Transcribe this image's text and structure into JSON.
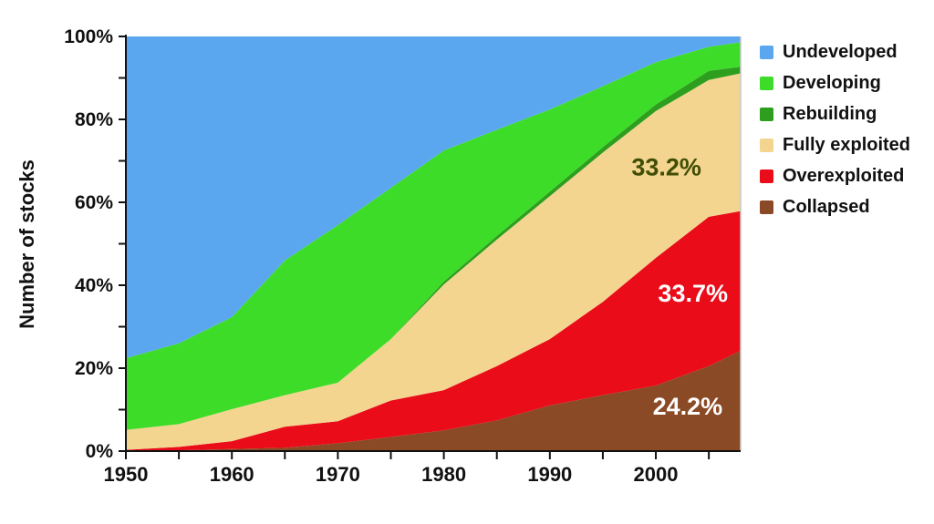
{
  "y_axis_title": "Number of stocks",
  "chart_data": {
    "type": "area",
    "stacked": true,
    "title": "",
    "xlabel": "",
    "ylabel": "Number of stocks",
    "xlim": [
      1950,
      2008
    ],
    "ylim": [
      0,
      100
    ],
    "grid": false,
    "legend_position": "right-top",
    "x": [
      1950,
      1955,
      1960,
      1965,
      1970,
      1975,
      1980,
      1985,
      1990,
      1995,
      2000,
      2005,
      2008
    ],
    "series": [
      {
        "name": "Collapsed",
        "color": "#8a4a26",
        "values": [
          0.0,
          0.2,
          0.5,
          0.8,
          1.9,
          3.4,
          5.0,
          7.4,
          11.0,
          13.5,
          15.8,
          20.5,
          24.2
        ]
      },
      {
        "name": "Overexploited",
        "color": "#ea0c19",
        "values": [
          0.3,
          0.8,
          1.9,
          5.1,
          5.3,
          8.8,
          9.7,
          13.1,
          16.0,
          22.5,
          30.8,
          36.0,
          33.7
        ]
      },
      {
        "name": "Fully exploited",
        "color": "#f3d590",
        "values": [
          4.8,
          5.5,
          7.7,
          7.6,
          9.3,
          14.8,
          25.5,
          30.5,
          34.5,
          36.0,
          35.4,
          33.0,
          33.2
        ]
      },
      {
        "name": "Rebuilding",
        "color": "#2e9e1f",
        "values": [
          0.0,
          0.0,
          0.0,
          0.0,
          0.0,
          0.0,
          0.7,
          0.9,
          1.1,
          1.3,
          1.6,
          2.2,
          1.6
        ]
      },
      {
        "name": "Developing",
        "color": "#3ddc28",
        "values": [
          17.3,
          19.5,
          22.2,
          32.5,
          38.0,
          36.5,
          31.6,
          25.6,
          19.8,
          14.7,
          10.2,
          5.8,
          5.9
        ]
      },
      {
        "name": "Undeveloped",
        "color": "#5aa7ef",
        "values": [
          77.6,
          74.0,
          67.7,
          54.0,
          45.5,
          36.5,
          27.5,
          22.5,
          17.6,
          12.0,
          6.2,
          2.5,
          1.4
        ]
      }
    ],
    "y_axis": {
      "ticks": [
        0,
        10,
        20,
        30,
        40,
        50,
        60,
        70,
        80,
        90,
        100
      ],
      "labeled": [
        {
          "value": 0,
          "label": "0%"
        },
        {
          "value": 20,
          "label": "20%"
        },
        {
          "value": 40,
          "label": "40%"
        },
        {
          "value": 60,
          "label": "60%"
        },
        {
          "value": 80,
          "label": "80%"
        },
        {
          "value": 100,
          "label": "100%"
        }
      ]
    },
    "x_axis": {
      "ticks": [
        1950,
        1955,
        1960,
        1965,
        1970,
        1975,
        1980,
        1985,
        1990,
        1995,
        2000,
        2005
      ],
      "labeled": [
        {
          "value": 1950,
          "label": "1950"
        },
        {
          "value": 1960,
          "label": "1960"
        },
        {
          "value": 1970,
          "label": "1970"
        },
        {
          "value": 1980,
          "label": "1980"
        },
        {
          "value": 1990,
          "label": "1990"
        },
        {
          "value": 2000,
          "label": "2000"
        }
      ]
    },
    "annotations": [
      {
        "text": "33.2%",
        "x": 2001.0,
        "y": 68.5,
        "color": "#3f4d05"
      },
      {
        "text": "33.7%",
        "x": 2003.5,
        "y": 38.0,
        "color": "#ffffff"
      },
      {
        "text": "24.2%",
        "x": 2003.0,
        "y": 10.8,
        "color": "#ffffff"
      }
    ],
    "legend": {
      "items": [
        {
          "label": "Undeveloped",
          "color": "#5aa7ef"
        },
        {
          "label": "Developing",
          "color": "#3ddc28"
        },
        {
          "label": "Rebuilding",
          "color": "#2e9e1f"
        },
        {
          "label": "Fully exploited",
          "color": "#f3d590"
        },
        {
          "label": "Overexploited",
          "color": "#ea0c19"
        },
        {
          "label": "Collapsed",
          "color": "#8a4a26"
        }
      ]
    }
  }
}
